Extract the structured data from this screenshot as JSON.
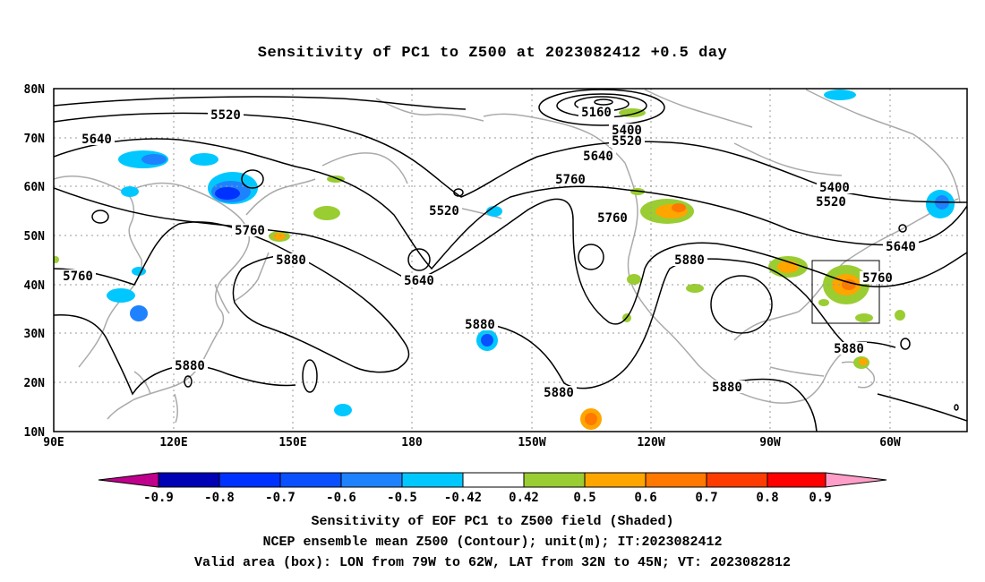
{
  "title": "Sensitivity of PC1 to Z500 at 2023082412 +0.5 day",
  "lat_labels": [
    "80N",
    "70N",
    "60N",
    "50N",
    "40N",
    "30N",
    "20N",
    "10N"
  ],
  "lon_labels": [
    "90E",
    "120E",
    "150E",
    "180",
    "150W",
    "120W",
    "90W",
    "60W"
  ],
  "contour_labels": [
    "5160",
    "5400",
    "5520",
    "5640",
    "5760",
    "5880"
  ],
  "contour_label_items": [
    {
      "text": "5520"
    },
    {
      "text": "5640"
    },
    {
      "text": "5760"
    },
    {
      "text": "5760"
    },
    {
      "text": "5880"
    },
    {
      "text": "5880"
    },
    {
      "text": "5880"
    },
    {
      "text": "5160"
    },
    {
      "text": "5400"
    },
    {
      "text": "5520"
    },
    {
      "text": "5640"
    },
    {
      "text": "5760"
    },
    {
      "text": "5520"
    },
    {
      "text": "5640"
    },
    {
      "text": "5760"
    },
    {
      "text": "5880"
    },
    {
      "text": "5880"
    },
    {
      "text": "5880"
    },
    {
      "text": "5400"
    },
    {
      "text": "5520"
    },
    {
      "text": "5640"
    },
    {
      "text": "5760"
    },
    {
      "text": "5880"
    }
  ],
  "colorbar": {
    "ticks": [
      "-0.9",
      "-0.8",
      "-0.7",
      "-0.6",
      "-0.5",
      "-0.42",
      "0.42",
      "0.5",
      "0.6",
      "0.7",
      "0.8",
      "0.9"
    ],
    "colors": [
      "#c0008c",
      "#0000b4",
      "#0032ff",
      "#0a50ff",
      "#1e82ff",
      "#00c8ff",
      "#ffffff",
      "#9acd32",
      "#ffa500",
      "#ff7800",
      "#ff3c00",
      "#ff0000",
      "#ff9ec8"
    ]
  },
  "valid_box": {
    "lon_west": "79W",
    "lon_east": "62W",
    "lat_south": "32N",
    "lat_north": "45N"
  },
  "captions": [
    "Sensitivity of EOF PC1 to Z500 field (Shaded)",
    "NCEP ensemble mean Z500 (Contour); unit(m); IT:2023082412",
    "Valid area (box): LON from 79W to 62W, LAT from 32N to 45N; VT: 2023082812"
  ]
}
